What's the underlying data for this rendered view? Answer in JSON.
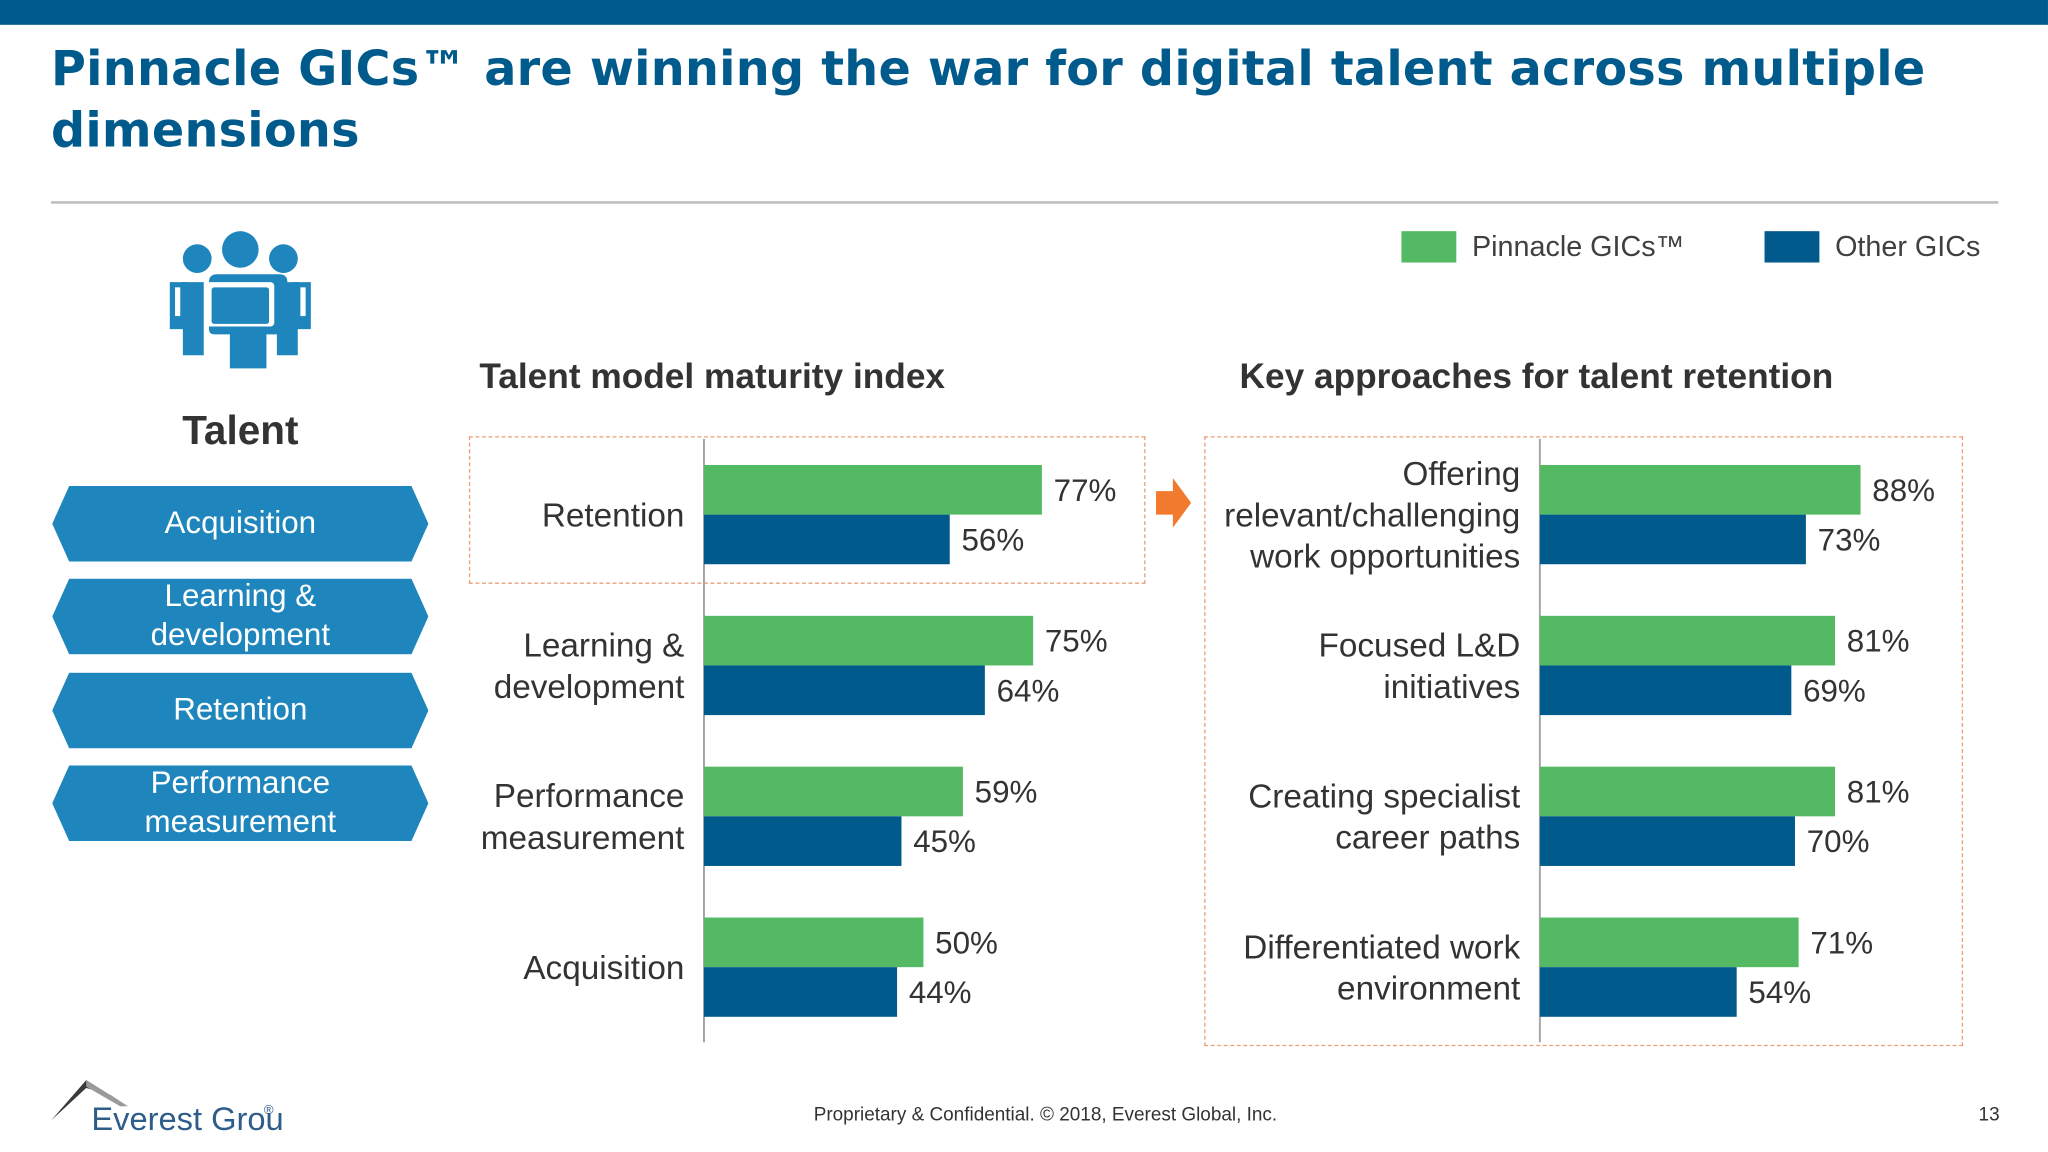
{
  "header": {
    "title": "Pinnacle GICs™ are winning the war for digital talent across multiple dimensions"
  },
  "sidebar": {
    "icon": "people-group-icon",
    "heading": "Talent",
    "items": [
      {
        "label": "Acquisition"
      },
      {
        "label": "Learning & development"
      },
      {
        "label": "Retention"
      },
      {
        "label": "Performance measurement"
      }
    ]
  },
  "legend": {
    "pinnacle": "Pinnacle GICs™",
    "other": "Other GICs"
  },
  "colors": {
    "brand": "#005a8c",
    "pinnacle": "#53b963",
    "other": "#005a8c",
    "chevron": "#1f86bd",
    "highlight_border": "#e8a07a",
    "arrow": "#f27a2e"
  },
  "chart_data": [
    {
      "type": "bar",
      "orientation": "horizontal",
      "title": "Talent model maturity index",
      "categories": [
        "Retention",
        "Learning & development",
        "Performance measurement",
        "Acquisition"
      ],
      "series": [
        {
          "name": "Pinnacle GICs™",
          "values": [
            77,
            75,
            59,
            50
          ]
        },
        {
          "name": "Other GICs",
          "values": [
            56,
            64,
            45,
            44
          ]
        }
      ],
      "value_labels": {
        "pinnacle": [
          "77%",
          "75%",
          "59%",
          "50%"
        ],
        "other": [
          "56%",
          "64%",
          "45%",
          "44%"
        ]
      },
      "unit": "%",
      "xlim": [
        0,
        100
      ],
      "grid": false,
      "highlighted_category": "Retention"
    },
    {
      "type": "bar",
      "orientation": "horizontal",
      "title": "Key approaches for talent retention",
      "categories": [
        "Offering relevant/challenging work opportunities",
        "Focused L&D initiatives",
        "Creating specialist career paths",
        "Differentiated work environment"
      ],
      "series": [
        {
          "name": "Pinnacle GICs™",
          "values": [
            88,
            81,
            81,
            71
          ]
        },
        {
          "name": "Other GICs",
          "values": [
            73,
            69,
            70,
            54
          ]
        }
      ],
      "value_labels": {
        "pinnacle": [
          "88%",
          "81%",
          "81%",
          "71%"
        ],
        "other": [
          "73%",
          "69%",
          "70%",
          "54%"
        ]
      },
      "unit": "%",
      "xlim": [
        0,
        100
      ],
      "grid": false
    }
  ],
  "footer": {
    "logo_text": "Everest Group",
    "logo_mark": "®",
    "copyright": "Proprietary & Confidential. © 2018, Everest Global, Inc.",
    "page_number": "13"
  }
}
